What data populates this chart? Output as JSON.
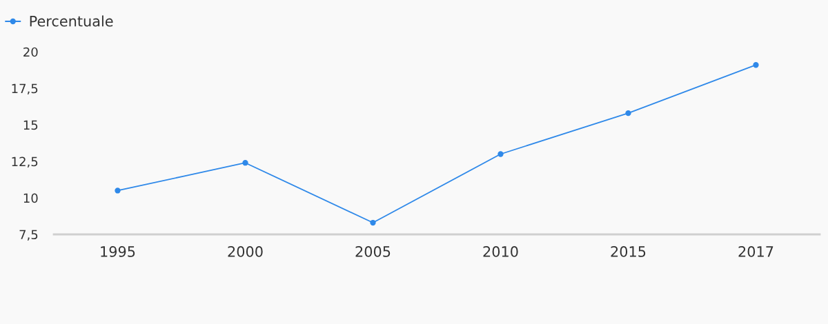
{
  "chart_data": {
    "type": "line",
    "categories": [
      "1995",
      "2000",
      "2005",
      "2010",
      "2015",
      "2017"
    ],
    "series": [
      {
        "name": "Percentuale",
        "color": "#2f89e9",
        "values": [
          10.5,
          12.4,
          8.3,
          13.0,
          15.8,
          19.1
        ]
      }
    ],
    "ylim": [
      7.5,
      20
    ],
    "yticks": [
      {
        "value": 7.5,
        "label": "7,5"
      },
      10,
      {
        "value": 12.5,
        "label": "12,5"
      },
      15,
      {
        "value": 17.5,
        "label": "17,5"
      },
      20
    ],
    "grid": false,
    "legend": "top left",
    "marker": "circle",
    "line_style": "solid"
  }
}
